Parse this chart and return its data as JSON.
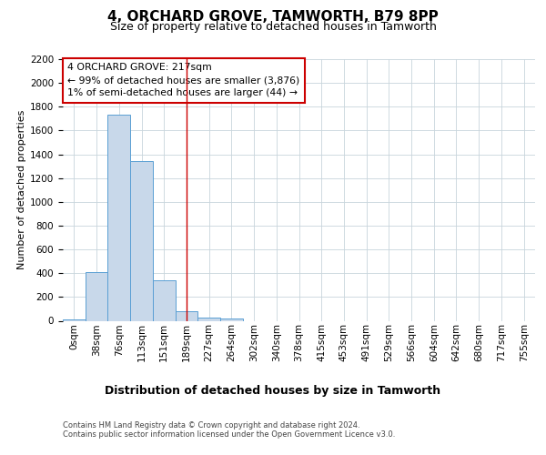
{
  "title": "4, ORCHARD GROVE, TAMWORTH, B79 8PP",
  "subtitle": "Size of property relative to detached houses in Tamworth",
  "xlabel": "Distribution of detached houses by size in Tamworth",
  "ylabel": "Number of detached properties",
  "footnote1": "Contains HM Land Registry data © Crown copyright and database right 2024.",
  "footnote2": "Contains public sector information licensed under the Open Government Licence v3.0.",
  "bin_labels": [
    "0sqm",
    "38sqm",
    "76sqm",
    "113sqm",
    "151sqm",
    "189sqm",
    "227sqm",
    "264sqm",
    "302sqm",
    "340sqm",
    "378sqm",
    "415sqm",
    "453sqm",
    "491sqm",
    "529sqm",
    "566sqm",
    "604sqm",
    "642sqm",
    "680sqm",
    "717sqm",
    "755sqm"
  ],
  "bar_values": [
    12,
    410,
    1730,
    1345,
    340,
    78,
    25,
    20,
    0,
    0,
    0,
    0,
    0,
    0,
    0,
    0,
    0,
    0,
    0,
    0,
    0
  ],
  "bar_color": "#c8d8ea",
  "bar_edge_color": "#5a9fd4",
  "red_line_x": 5.5,
  "annotation_text": "4 ORCHARD GROVE: 217sqm\n← 99% of detached houses are smaller (3,876)\n1% of semi-detached houses are larger (44) →",
  "annotation_box_color": "#ffffff",
  "annotation_box_edge": "#cc0000",
  "ylim": [
    0,
    2200
  ],
  "yticks": [
    0,
    200,
    400,
    600,
    800,
    1000,
    1200,
    1400,
    1600,
    1800,
    2000,
    2200
  ],
  "bg_color": "#ffffff",
  "grid_color": "#c8d4dc",
  "title_fontsize": 11,
  "subtitle_fontsize": 9,
  "xlabel_fontsize": 9,
  "ylabel_fontsize": 8,
  "tick_fontsize": 7.5,
  "footnote_fontsize": 6.0
}
